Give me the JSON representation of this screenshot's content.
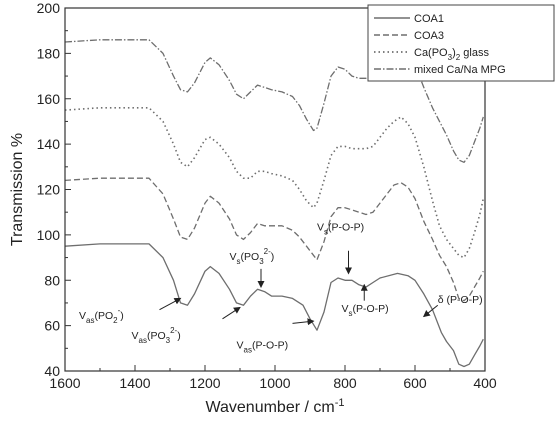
{
  "chart_data": {
    "type": "line",
    "xlabel": "Wavenumber / cm",
    "xlabel_sup": "-1",
    "ylabel": "Transmission %",
    "xlim": [
      1600,
      400
    ],
    "ylim": [
      40,
      200
    ],
    "x_ticks": [
      1600,
      1400,
      1200,
      1000,
      800,
      600,
      400
    ],
    "y_ticks": [
      40,
      60,
      80,
      100,
      120,
      140,
      160,
      180,
      200
    ],
    "grid": false,
    "legend_position": "top-right",
    "series": [
      {
        "name": "COA1",
        "style": "solid",
        "color": "#6e6e6e",
        "points": [
          [
            1600,
            95
          ],
          [
            1500,
            96
          ],
          [
            1400,
            96
          ],
          [
            1360,
            96
          ],
          [
            1320,
            90
          ],
          [
            1290,
            80
          ],
          [
            1270,
            70
          ],
          [
            1250,
            69
          ],
          [
            1230,
            74
          ],
          [
            1200,
            84
          ],
          [
            1185,
            86
          ],
          [
            1160,
            83
          ],
          [
            1130,
            76
          ],
          [
            1110,
            70
          ],
          [
            1090,
            69
          ],
          [
            1070,
            73
          ],
          [
            1050,
            76
          ],
          [
            1030,
            75
          ],
          [
            1010,
            73
          ],
          [
            980,
            73
          ],
          [
            950,
            72
          ],
          [
            920,
            69
          ],
          [
            900,
            63
          ],
          [
            880,
            58
          ],
          [
            860,
            66
          ],
          [
            840,
            79
          ],
          [
            820,
            81
          ],
          [
            800,
            80
          ],
          [
            780,
            80
          ],
          [
            760,
            78
          ],
          [
            740,
            77
          ],
          [
            720,
            79
          ],
          [
            700,
            81
          ],
          [
            650,
            83
          ],
          [
            620,
            82
          ],
          [
            600,
            80
          ],
          [
            575,
            74
          ],
          [
            550,
            67
          ],
          [
            525,
            57
          ],
          [
            510,
            53
          ],
          [
            490,
            49
          ],
          [
            475,
            43
          ],
          [
            460,
            42
          ],
          [
            445,
            43
          ],
          [
            430,
            47
          ],
          [
            415,
            51
          ],
          [
            405,
            54
          ]
        ]
      },
      {
        "name": "COA3",
        "style": "dash",
        "color": "#6e6e6e",
        "points": [
          [
            1600,
            124
          ],
          [
            1500,
            125
          ],
          [
            1400,
            125
          ],
          [
            1360,
            125
          ],
          [
            1320,
            118
          ],
          [
            1290,
            107
          ],
          [
            1270,
            99
          ],
          [
            1250,
            98
          ],
          [
            1230,
            103
          ],
          [
            1200,
            114
          ],
          [
            1185,
            117
          ],
          [
            1160,
            114
          ],
          [
            1130,
            107
          ],
          [
            1110,
            100
          ],
          [
            1090,
            98
          ],
          [
            1070,
            101
          ],
          [
            1050,
            105
          ],
          [
            1030,
            104
          ],
          [
            1010,
            104
          ],
          [
            980,
            104
          ],
          [
            950,
            102
          ],
          [
            930,
            99
          ],
          [
            910,
            95
          ],
          [
            890,
            91
          ],
          [
            880,
            89
          ],
          [
            860,
            97
          ],
          [
            840,
            108
          ],
          [
            820,
            112
          ],
          [
            800,
            112
          ],
          [
            780,
            111
          ],
          [
            760,
            110
          ],
          [
            740,
            109
          ],
          [
            720,
            110
          ],
          [
            700,
            114
          ],
          [
            680,
            118
          ],
          [
            660,
            122
          ],
          [
            640,
            123
          ],
          [
            620,
            121
          ],
          [
            600,
            116
          ],
          [
            575,
            106
          ],
          [
            550,
            98
          ],
          [
            530,
            91
          ],
          [
            510,
            86
          ],
          [
            490,
            79
          ],
          [
            475,
            72
          ],
          [
            460,
            71
          ],
          [
            445,
            73
          ],
          [
            430,
            77
          ],
          [
            415,
            81
          ],
          [
            405,
            84
          ]
        ]
      },
      {
        "name": "Ca(PO3)2 glass",
        "name_sub": "3",
        "name_sub2": "2",
        "style": "dot",
        "color": "#6e6e6e",
        "points": [
          [
            1600,
            155
          ],
          [
            1500,
            156
          ],
          [
            1400,
            156
          ],
          [
            1360,
            156
          ],
          [
            1320,
            150
          ],
          [
            1290,
            140
          ],
          [
            1270,
            132
          ],
          [
            1250,
            130
          ],
          [
            1230,
            134
          ],
          [
            1200,
            142
          ],
          [
            1185,
            143
          ],
          [
            1160,
            140
          ],
          [
            1130,
            134
          ],
          [
            1110,
            128
          ],
          [
            1090,
            125
          ],
          [
            1070,
            125
          ],
          [
            1050,
            128
          ],
          [
            1030,
            128
          ],
          [
            1010,
            127
          ],
          [
            980,
            126
          ],
          [
            950,
            124
          ],
          [
            930,
            120
          ],
          [
            910,
            115
          ],
          [
            890,
            112
          ],
          [
            880,
            114
          ],
          [
            860,
            124
          ],
          [
            840,
            135
          ],
          [
            820,
            139
          ],
          [
            800,
            139
          ],
          [
            780,
            138
          ],
          [
            760,
            138
          ],
          [
            740,
            138
          ],
          [
            720,
            139
          ],
          [
            700,
            143
          ],
          [
            680,
            147
          ],
          [
            660,
            150
          ],
          [
            640,
            152
          ],
          [
            620,
            149
          ],
          [
            600,
            143
          ],
          [
            575,
            130
          ],
          [
            550,
            115
          ],
          [
            530,
            104
          ],
          [
            510,
            98
          ],
          [
            490,
            94
          ],
          [
            475,
            91
          ],
          [
            460,
            90
          ],
          [
            445,
            94
          ],
          [
            430,
            101
          ],
          [
            415,
            109
          ],
          [
            405,
            116
          ]
        ]
      },
      {
        "name": "mixed Ca/Na MPG",
        "style": "dashdot",
        "color": "#6e6e6e",
        "points": [
          [
            1600,
            185
          ],
          [
            1500,
            186
          ],
          [
            1400,
            186
          ],
          [
            1360,
            186
          ],
          [
            1320,
            180
          ],
          [
            1290,
            170
          ],
          [
            1270,
            164
          ],
          [
            1250,
            163
          ],
          [
            1230,
            167
          ],
          [
            1200,
            176
          ],
          [
            1185,
            178
          ],
          [
            1160,
            175
          ],
          [
            1130,
            168
          ],
          [
            1110,
            162
          ],
          [
            1090,
            160
          ],
          [
            1070,
            163
          ],
          [
            1050,
            166
          ],
          [
            1030,
            165
          ],
          [
            1010,
            164
          ],
          [
            980,
            163
          ],
          [
            950,
            161
          ],
          [
            930,
            157
          ],
          [
            910,
            151
          ],
          [
            890,
            146
          ],
          [
            880,
            147
          ],
          [
            860,
            158
          ],
          [
            840,
            170
          ],
          [
            820,
            174
          ],
          [
            800,
            173
          ],
          [
            780,
            170
          ],
          [
            760,
            169
          ],
          [
            740,
            169
          ],
          [
            720,
            170
          ],
          [
            700,
            174
          ],
          [
            680,
            178
          ],
          [
            660,
            182
          ],
          [
            640,
            184
          ],
          [
            620,
            181
          ],
          [
            600,
            175
          ],
          [
            575,
            165
          ],
          [
            550,
            156
          ],
          [
            530,
            150
          ],
          [
            510,
            144
          ],
          [
            490,
            137
          ],
          [
            475,
            133
          ],
          [
            460,
            132
          ],
          [
            445,
            135
          ],
          [
            430,
            141
          ],
          [
            415,
            147
          ],
          [
            405,
            152
          ]
        ]
      }
    ],
    "annotations": [
      {
        "text": "V",
        "sub": "as",
        "rest": "(PO",
        "sub2": "2",
        "sup": "-",
        "tail": ")",
        "label_at": [
          1560,
          63
        ],
        "arrow_from": [
          1330,
          67
        ],
        "arrow_to": [
          1270,
          72
        ]
      },
      {
        "text": "V",
        "sub": "as",
        "rest": "(PO",
        "sub2": "3",
        "sup": "2-",
        "tail": ")",
        "label_at": [
          1410,
          54
        ],
        "arrow_from": [
          1150,
          63
        ],
        "arrow_to": [
          1100,
          68
        ]
      },
      {
        "text": "V",
        "sub": "s",
        "rest": "(PO",
        "sub2": "3",
        "sup": "2-",
        "tail": ")",
        "label_at": [
          1130,
          89
        ],
        "arrow_from": [
          1040,
          85
        ],
        "arrow_to": [
          1040,
          77
        ]
      },
      {
        "text": "V",
        "sub": "as",
        "rest": "(P-O-P)",
        "sub2": "",
        "sup": "",
        "tail": "",
        "label_at": [
          1110,
          50
        ],
        "arrow_from": [
          950,
          61
        ],
        "arrow_to": [
          890,
          62
        ]
      },
      {
        "text": "V",
        "sub": "s",
        "rest": "(P-O-P)",
        "sub2": "",
        "sup": "",
        "tail": "",
        "label_at": [
          880,
          102
        ],
        "arrow_from": [
          790,
          93
        ],
        "arrow_to": [
          790,
          83
        ]
      },
      {
        "text": "V",
        "sub": "s",
        "rest": "(P-O-P)",
        "sub2": "",
        "sup": "",
        "tail": "",
        "label_at": [
          810,
          66
        ],
        "arrow_from": [
          745,
          71
        ],
        "arrow_to": [
          745,
          78
        ]
      },
      {
        "text": "δ (P-O-P)",
        "sub": "",
        "rest": "",
        "sub2": "",
        "sup": "",
        "tail": "",
        "label_at": [
          535,
          70
        ],
        "arrow_from": [
          535,
          69
        ],
        "arrow_to": [
          575,
          64
        ]
      }
    ]
  }
}
